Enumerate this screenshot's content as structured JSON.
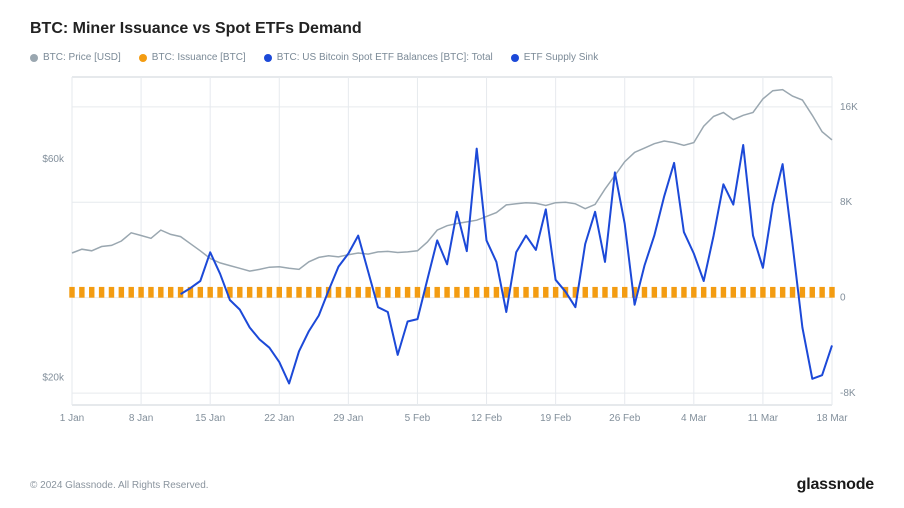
{
  "chart": {
    "type": "composite-line-bar",
    "title": "BTC: Miner Issuance vs Spot ETFs Demand",
    "title_fontsize": 16,
    "title_color": "#222222",
    "background_color": "#ffffff",
    "grid_color": "#e6eaee",
    "border_color": "#ccd3da",
    "legend": {
      "items": [
        {
          "label": "BTC: Price [USD]",
          "color": "#9aa7b0",
          "type": "line"
        },
        {
          "label": "BTC: Issuance [BTC]",
          "color": "#f39c12",
          "type": "bar"
        },
        {
          "label": "BTC: US Bitcoin Spot ETF Balances [BTC]: Total",
          "color": "#1c49d8",
          "type": "line"
        },
        {
          "label": "ETF Supply Sink",
          "color": "#1c49d8",
          "type": "line"
        }
      ],
      "fontsize": 10,
      "text_color": "#7b8a97"
    },
    "x_axis": {
      "ticks": [
        "1 Jan",
        "8 Jan",
        "15 Jan",
        "22 Jan",
        "29 Jan",
        "5 Feb",
        "12 Feb",
        "19 Feb",
        "26 Feb",
        "4 Mar",
        "11 Mar",
        "18 Mar"
      ],
      "label_fontsize": 10,
      "label_color": "#828f9b"
    },
    "y_axis_left": {
      "ticks": [
        "$60k",
        "$20k"
      ],
      "tick_values": [
        60000,
        20000
      ],
      "range": [
        15000,
        75000
      ],
      "label_fontsize": 10,
      "label_color": "#828f9b"
    },
    "y_axis_right": {
      "ticks": [
        "16K",
        "8K",
        "0",
        "-8K"
      ],
      "tick_values": [
        16000,
        8000,
        0,
        -8000
      ],
      "range": [
        -9000,
        18500
      ],
      "label_fontsize": 10,
      "label_color": "#828f9b"
    },
    "series_price": {
      "name": "BTC: Price [USD]",
      "color": "#9aa7b0",
      "line_width": 1.5,
      "values": [
        42800,
        43500,
        43200,
        44000,
        44200,
        45000,
        46500,
        46000,
        45500,
        47000,
        46200,
        45800,
        44500,
        43200,
        41800,
        41000,
        40500,
        40000,
        39500,
        39800,
        40200,
        40300,
        40000,
        39800,
        41200,
        42000,
        42300,
        42100,
        42500,
        42800,
        42600,
        43000,
        43100,
        42900,
        43000,
        43200,
        44800,
        47000,
        47800,
        48200,
        48500,
        48800,
        49500,
        50200,
        51600,
        51800,
        52000,
        51900,
        51500,
        52000,
        52100,
        51800,
        50900,
        51700,
        54500,
        57000,
        59500,
        61200,
        62000,
        62800,
        63300,
        63000,
        62500,
        63000,
        66000,
        67800,
        68500,
        67200,
        68000,
        68500,
        71000,
        72500,
        72700,
        71500,
        70800,
        68000,
        65000,
        63500
      ]
    },
    "series_etf": {
      "name": "ETF Supply Sink",
      "color": "#1c49d8",
      "line_width": 2,
      "values": [
        null,
        null,
        null,
        null,
        null,
        null,
        null,
        null,
        null,
        null,
        null,
        300,
        800,
        1400,
        3800,
        2000,
        -200,
        -1000,
        -2500,
        -3500,
        -4200,
        -5400,
        -7200,
        -4500,
        -2800,
        -1500,
        600,
        2600,
        3700,
        5200,
        2200,
        -800,
        -1200,
        -4800,
        -2000,
        -1800,
        1500,
        4800,
        2800,
        7200,
        3900,
        12500,
        4800,
        3000,
        -1200,
        3800,
        5200,
        4000,
        7400,
        1500,
        500,
        -800,
        4500,
        7200,
        3000,
        10500,
        6200,
        -600,
        2700,
        5200,
        8500,
        11300,
        5500,
        3700,
        1400,
        5200,
        9500,
        7800,
        12800,
        5200,
        2500,
        7800,
        11200,
        4500,
        -2500,
        -6800,
        -6500,
        -4000
      ]
    },
    "series_issuance": {
      "name": "BTC: Issuance [BTC]",
      "color": "#f39c12",
      "value": 900,
      "count": 78,
      "bar_width": 0.55
    }
  },
  "footer": {
    "copyright": "© 2024 Glassnode. All Rights Reserved.",
    "brand": "glassnode",
    "copyright_color": "#8a949e",
    "brand_color": "#1a1a1a"
  }
}
